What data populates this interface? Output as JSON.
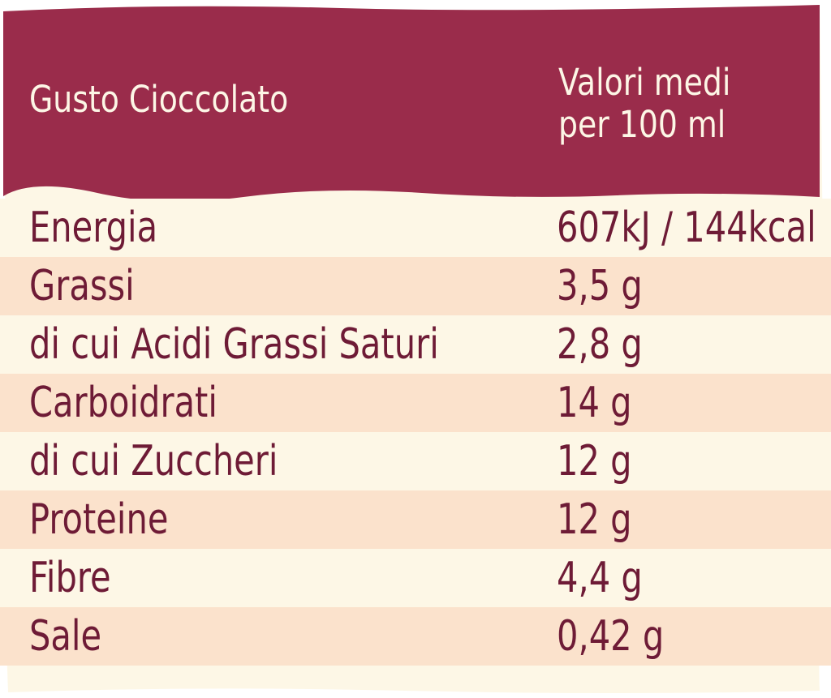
{
  "colors": {
    "header_background": "#9a2c4b",
    "header_text": "#fdf6e6",
    "row_light": "#fdf7e6",
    "row_dark": "#fbe2cc",
    "body_text": "#6e1b36"
  },
  "header": {
    "title": "Gusto Cioccolato",
    "column_line1": "Valori medi",
    "column_line2": "per 100 ml"
  },
  "rows": [
    {
      "name": "Energia",
      "value": "607kJ / 144kcal"
    },
    {
      "name": "Grassi",
      "value": "3,5 g"
    },
    {
      "name": "di cui Acidi Grassi Saturi",
      "value": "2,8 g"
    },
    {
      "name": "Carboidrati",
      "value": "14 g"
    },
    {
      "name": "di cui Zuccheri",
      "value": "12 g"
    },
    {
      "name": "Proteine",
      "value": "12 g"
    },
    {
      "name": "Fibre",
      "value": "4,4 g"
    },
    {
      "name": "Sale",
      "value": "0,42 g"
    }
  ]
}
